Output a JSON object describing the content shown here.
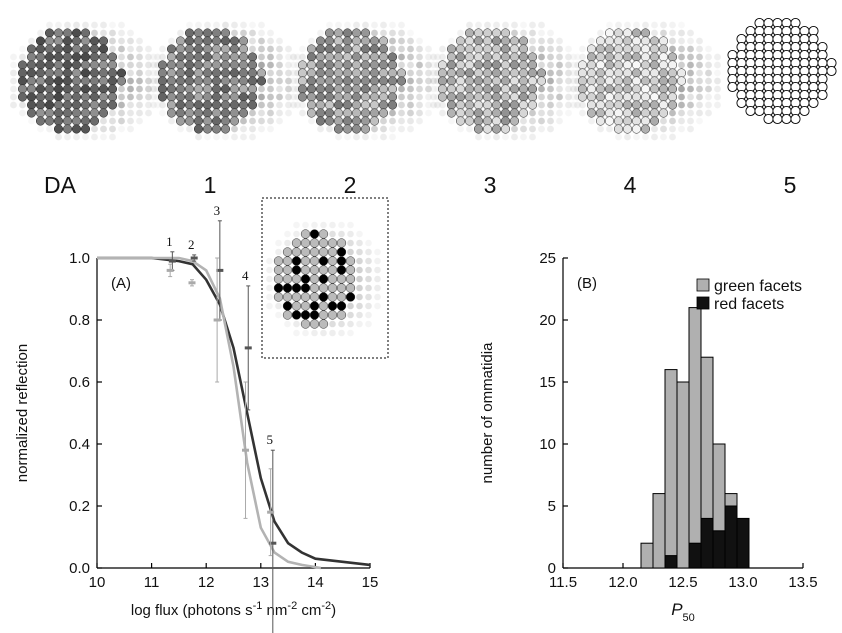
{
  "image_labels": [
    "DA",
    "1",
    "2",
    "3",
    "4",
    "5"
  ],
  "chart_data": [
    {
      "type": "line",
      "panel_label": "(A)",
      "ylabel": "normalized reflection",
      "xlabel_parts": [
        "log flux (photons s",
        "-1",
        " nm",
        "-2",
        " cm",
        "-2",
        ")"
      ],
      "xlim": [
        10,
        15
      ],
      "ylim": [
        0,
        1
      ],
      "xticks": [
        10,
        11,
        12,
        13,
        14,
        15
      ],
      "yticks": [
        {
          "value": 0,
          "label": "0.0"
        },
        {
          "value": 0.2,
          "label": "0.2"
        },
        {
          "value": 0.4,
          "label": "0.4"
        },
        {
          "value": 0.6,
          "label": "0.6"
        },
        {
          "value": 0.8,
          "label": "0.8"
        },
        {
          "value": 1,
          "label": "1.0"
        }
      ],
      "series": [
        {
          "color": "#333333",
          "x": [
            10,
            10.5,
            11,
            11.5,
            11.75,
            12,
            12.25,
            12.5,
            12.75,
            13,
            13.25,
            13.5,
            13.75,
            14,
            14.5,
            15
          ],
          "values": [
            1,
            1,
            1,
            0.99,
            0.98,
            0.93,
            0.85,
            0.71,
            0.5,
            0.29,
            0.15,
            0.08,
            0.05,
            0.03,
            0.02,
            0.01
          ]
        },
        {
          "color": "#b3b3b3",
          "x": [
            10,
            10.5,
            11,
            11.5,
            11.75,
            12,
            12.25,
            12.5,
            12.75,
            13,
            13.25,
            13.5,
            13.75,
            14.1
          ],
          "values": [
            1,
            1,
            1,
            1,
            0.99,
            0.96,
            0.87,
            0.65,
            0.34,
            0.13,
            0.05,
            0.02,
            0.01,
            0
          ]
        }
      ],
      "points": [
        {
          "color": "#555555",
          "x": [
            11.38,
            11.78,
            12.25,
            12.77,
            13.22
          ],
          "values": [
            0.99,
            1,
            0.96,
            0.71,
            0.08
          ],
          "errors": [
            0.03,
            0.01,
            0.16,
            0.2,
            0.3
          ]
        },
        {
          "color": "#aaaaaa",
          "x": [
            11.34,
            11.74,
            12.2,
            12.72,
            13.18
          ],
          "values": [
            0.96,
            0.92,
            0.8,
            0.38,
            0.18
          ],
          "errors": [
            0.02,
            0.01,
            0.2,
            0.22,
            0.14
          ]
        }
      ],
      "annotations": [
        "1",
        "2",
        "3",
        "4",
        "5"
      ]
    },
    {
      "type": "histogram",
      "panel_label": "(B)",
      "ylabel": "number of ommatidia",
      "xlabel_parts": [
        "P",
        "50"
      ],
      "xlim": [
        11.5,
        13.5
      ],
      "ylim": [
        0,
        25
      ],
      "xticks": [
        11.5,
        {
          "value": 12,
          "label": "12.0"
        },
        12.5,
        {
          "value": 13,
          "label": "13.0"
        },
        13.5
      ],
      "yticks": [
        0,
        5,
        10,
        15,
        20,
        25
      ],
      "bins": [
        12.15,
        12.25,
        12.35,
        12.45,
        12.55,
        12.65,
        12.75,
        12.85,
        12.95,
        13.05
      ],
      "series": [
        {
          "name": "green facets",
          "color": "#b0b0b0",
          "values": [
            2,
            6,
            15,
            15,
            19,
            13,
            7,
            1,
            0
          ]
        },
        {
          "name": "red facets",
          "color": "#111111",
          "values": [
            0,
            0,
            1,
            0,
            2,
            4,
            3,
            5,
            4
          ]
        }
      ]
    }
  ]
}
